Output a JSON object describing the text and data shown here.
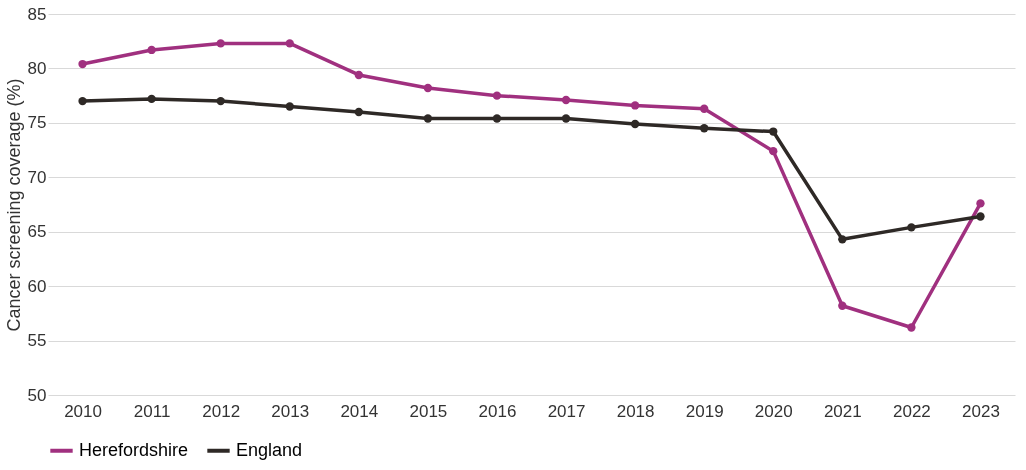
{
  "chart_data": {
    "type": "line",
    "ylabel": "Cancer screening coverage (%)",
    "categories": [
      "2010",
      "2011",
      "2012",
      "2013",
      "2014",
      "2015",
      "2016",
      "2017",
      "2018",
      "2019",
      "2020",
      "2021",
      "2022",
      "2023"
    ],
    "series": [
      {
        "name": "Herefordshire",
        "color": "#a0307f",
        "values": [
          80.4,
          81.7,
          82.3,
          82.3,
          79.4,
          78.2,
          77.5,
          77.1,
          76.6,
          76.3,
          72.4,
          58.2,
          56.2,
          67.6
        ]
      },
      {
        "name": "England",
        "color": "#2e2926",
        "values": [
          77.0,
          77.2,
          77.0,
          76.5,
          76.0,
          75.4,
          75.4,
          75.4,
          74.9,
          74.5,
          74.2,
          64.3,
          65.4,
          66.4
        ]
      }
    ],
    "ylim": [
      50,
      85
    ],
    "yticks": [
      50,
      55,
      60,
      65,
      70,
      75,
      80,
      85
    ],
    "grid": "y",
    "legend": "bottom",
    "marker": "circle",
    "line_style": "solid"
  }
}
